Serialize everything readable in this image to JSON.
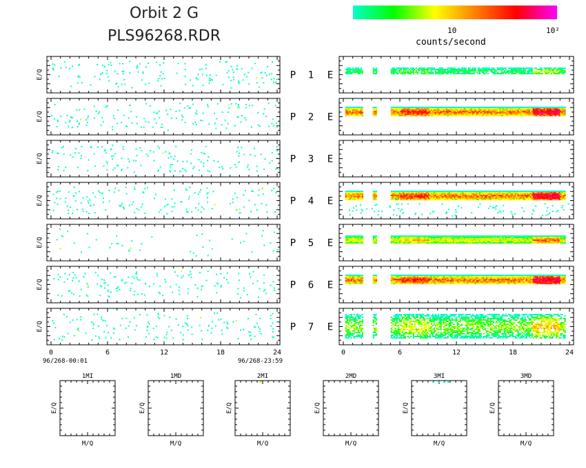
{
  "header": {
    "title_line1": "Orbit 2 G",
    "title_line2": "PLS96268.RDR"
  },
  "colorbar": {
    "tick1": "10",
    "tick2": "10²",
    "label": "counts/second",
    "colors": [
      "#00ffc8",
      "#00ff00",
      "#ffff00",
      "#ff8000",
      "#ff0000",
      "#ff00ff"
    ]
  },
  "rows": [
    {
      "letter": "P",
      "num": "1",
      "e": "E"
    },
    {
      "letter": "P",
      "num": "2",
      "e": "E"
    },
    {
      "letter": "P",
      "num": "3",
      "e": "E"
    },
    {
      "letter": "P",
      "num": "4",
      "e": "E"
    },
    {
      "letter": "P",
      "num": "5",
      "e": "E"
    },
    {
      "letter": "P",
      "num": "6",
      "e": "E"
    },
    {
      "letter": "P",
      "num": "7",
      "e": "E"
    }
  ],
  "axis": {
    "ylabel": "E/Q",
    "xticks": [
      "0",
      "6",
      "12",
      "18",
      "24"
    ],
    "start_time": "96/268-00:01",
    "end_time": "96/268-23:59"
  },
  "small_panels": {
    "titles": [
      "1MI",
      "1MD",
      "2MI",
      "2MD",
      "3MI",
      "3MD"
    ],
    "xlabel": "M/Q",
    "ylabel": "E/Q"
  },
  "chart_data": {
    "type": "heatmap",
    "x_range": [
      0,
      24
    ],
    "colorbar_range": [
      1,
      100
    ],
    "colorbar_scale": "log",
    "colorbar_label": "counts/second",
    "left_panels_activity": [
      {
        "row": "P 1",
        "level": "sparse"
      },
      {
        "row": "P 2",
        "level": "sparse"
      },
      {
        "row": "P 3",
        "level": "sparse"
      },
      {
        "row": "P 4",
        "level": "sparse"
      },
      {
        "row": "P 5",
        "level": "very sparse"
      },
      {
        "row": "P 6",
        "level": "sparse"
      },
      {
        "row": "P 7",
        "level": "sparse"
      }
    ],
    "right_panels_band": [
      {
        "row": "P 1",
        "band": "narrow",
        "peak_counts": 5
      },
      {
        "row": "P 2",
        "band": "wide",
        "peak_counts": 60
      },
      {
        "row": "P 3",
        "band": "none",
        "peak_counts": 0
      },
      {
        "row": "P 4",
        "band": "wide",
        "peak_counts": 60
      },
      {
        "row": "P 5",
        "band": "medium",
        "peak_counts": 20
      },
      {
        "row": "P 6",
        "band": "wide",
        "peak_counts": 60
      },
      {
        "row": "P 7",
        "band": "broad",
        "peak_counts": 10
      }
    ],
    "band_gaps_hours": [
      [
        2.0,
        3.0
      ],
      [
        3.5,
        5.0
      ]
    ]
  }
}
